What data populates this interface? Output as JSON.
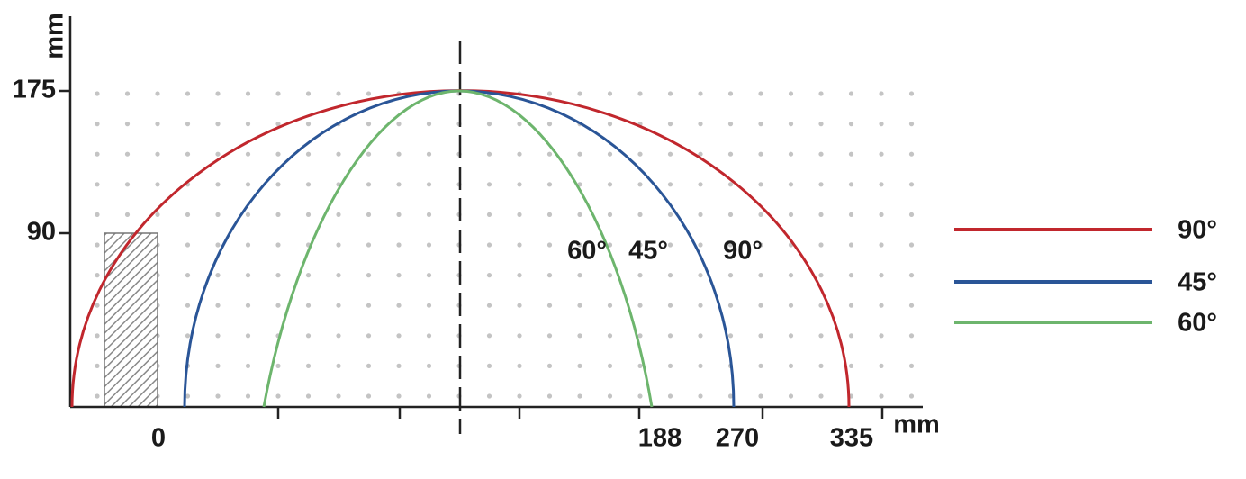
{
  "y_axis": {
    "unit": "mm",
    "ticks": [
      "175",
      "90"
    ]
  },
  "x_axis": {
    "unit": "mm",
    "ticks": [
      "0",
      "188",
      "270",
      "335"
    ]
  },
  "curve_labels": [
    {
      "text": "60°",
      "color": "#6db56d"
    },
    {
      "text": "45°",
      "color": "#2a5597"
    },
    {
      "text": "90°",
      "color": "#c1272d"
    }
  ],
  "legend": [
    {
      "label": "90°",
      "color": "#c1272d"
    },
    {
      "label": "45°",
      "color": "#2a5597"
    },
    {
      "label": "60°",
      "color": "#6db56d"
    }
  ]
}
